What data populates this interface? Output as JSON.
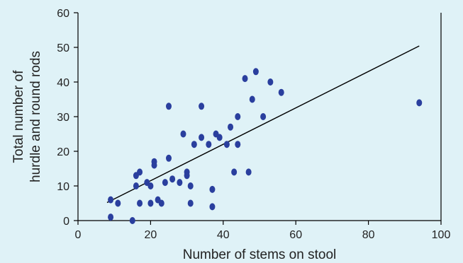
{
  "chart_data": {
    "type": "scatter",
    "title": "",
    "xlabel": "Number of stems on stool",
    "ylabel_lines": [
      "Total number of",
      "hurdle and round rods"
    ],
    "xlim": [
      0,
      100
    ],
    "ylim": [
      0,
      60
    ],
    "xticks": [
      "0",
      "20",
      "40",
      "60",
      "80",
      "100"
    ],
    "yticks": [
      "0",
      "10",
      "20",
      "30",
      "40",
      "50",
      "60"
    ],
    "grid": false,
    "point_color": "#2a3f9e",
    "line_color": "#000000",
    "points": [
      {
        "x": 9,
        "y": 6
      },
      {
        "x": 9,
        "y": 1
      },
      {
        "x": 11,
        "y": 5
      },
      {
        "x": 15,
        "y": 0
      },
      {
        "x": 16,
        "y": 13
      },
      {
        "x": 16,
        "y": 10
      },
      {
        "x": 17,
        "y": 14
      },
      {
        "x": 17,
        "y": 5
      },
      {
        "x": 19,
        "y": 11
      },
      {
        "x": 20,
        "y": 10
      },
      {
        "x": 20,
        "y": 5
      },
      {
        "x": 21,
        "y": 17
      },
      {
        "x": 21,
        "y": 16
      },
      {
        "x": 22,
        "y": 6
      },
      {
        "x": 23,
        "y": 5
      },
      {
        "x": 24,
        "y": 11
      },
      {
        "x": 25,
        "y": 33
      },
      {
        "x": 25,
        "y": 18
      },
      {
        "x": 26,
        "y": 12
      },
      {
        "x": 28,
        "y": 11
      },
      {
        "x": 29,
        "y": 25
      },
      {
        "x": 30,
        "y": 14
      },
      {
        "x": 30,
        "y": 13
      },
      {
        "x": 31,
        "y": 10
      },
      {
        "x": 31,
        "y": 5
      },
      {
        "x": 32,
        "y": 22
      },
      {
        "x": 34,
        "y": 33
      },
      {
        "x": 34,
        "y": 24
      },
      {
        "x": 36,
        "y": 22
      },
      {
        "x": 37,
        "y": 9
      },
      {
        "x": 37,
        "y": 4
      },
      {
        "x": 38,
        "y": 25
      },
      {
        "x": 39,
        "y": 24
      },
      {
        "x": 41,
        "y": 22
      },
      {
        "x": 42,
        "y": 27
      },
      {
        "x": 43,
        "y": 14
      },
      {
        "x": 44,
        "y": 30
      },
      {
        "x": 44,
        "y": 22
      },
      {
        "x": 46,
        "y": 41
      },
      {
        "x": 47,
        "y": 14
      },
      {
        "x": 48,
        "y": 35
      },
      {
        "x": 49,
        "y": 43
      },
      {
        "x": 51,
        "y": 30
      },
      {
        "x": 53,
        "y": 40
      },
      {
        "x": 56,
        "y": 37
      },
      {
        "x": 94,
        "y": 34
      }
    ],
    "trendline": {
      "x": [
        8,
        94
      ],
      "y": [
        5.2,
        50.4
      ]
    }
  }
}
